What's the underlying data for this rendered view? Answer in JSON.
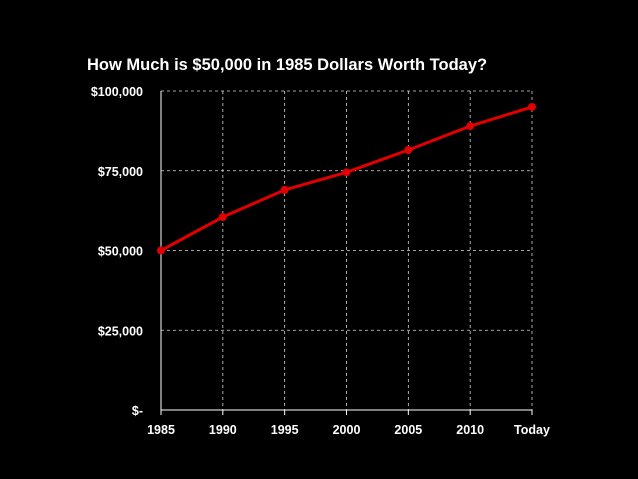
{
  "chart_data": {
    "type": "line",
    "title": "How Much is $50,000 in 1985 Dollars Worth Today?",
    "xlabel": "",
    "ylabel": "",
    "categories": [
      "1985",
      "1990",
      "1995",
      "2000",
      "2005",
      "2010",
      "Today"
    ],
    "series": [
      {
        "values": [
          50000,
          60500,
          69000,
          74500,
          81500,
          89000,
          95000
        ],
        "color": "#e00000"
      }
    ],
    "ylim": [
      0,
      100000
    ],
    "y_ticks": [
      {
        "value": 0,
        "label": "$-"
      },
      {
        "value": 25000,
        "label": "$25,000"
      },
      {
        "value": 50000,
        "label": "$50,000"
      },
      {
        "value": 75000,
        "label": "$75,000"
      },
      {
        "value": 100000,
        "label": "$100,000"
      }
    ],
    "grid": true,
    "grid_style": "dashed",
    "background": "#000000",
    "text_color": "#ffffff",
    "axis_color": "#ffffff",
    "grid_color": "#d8d8d8"
  }
}
